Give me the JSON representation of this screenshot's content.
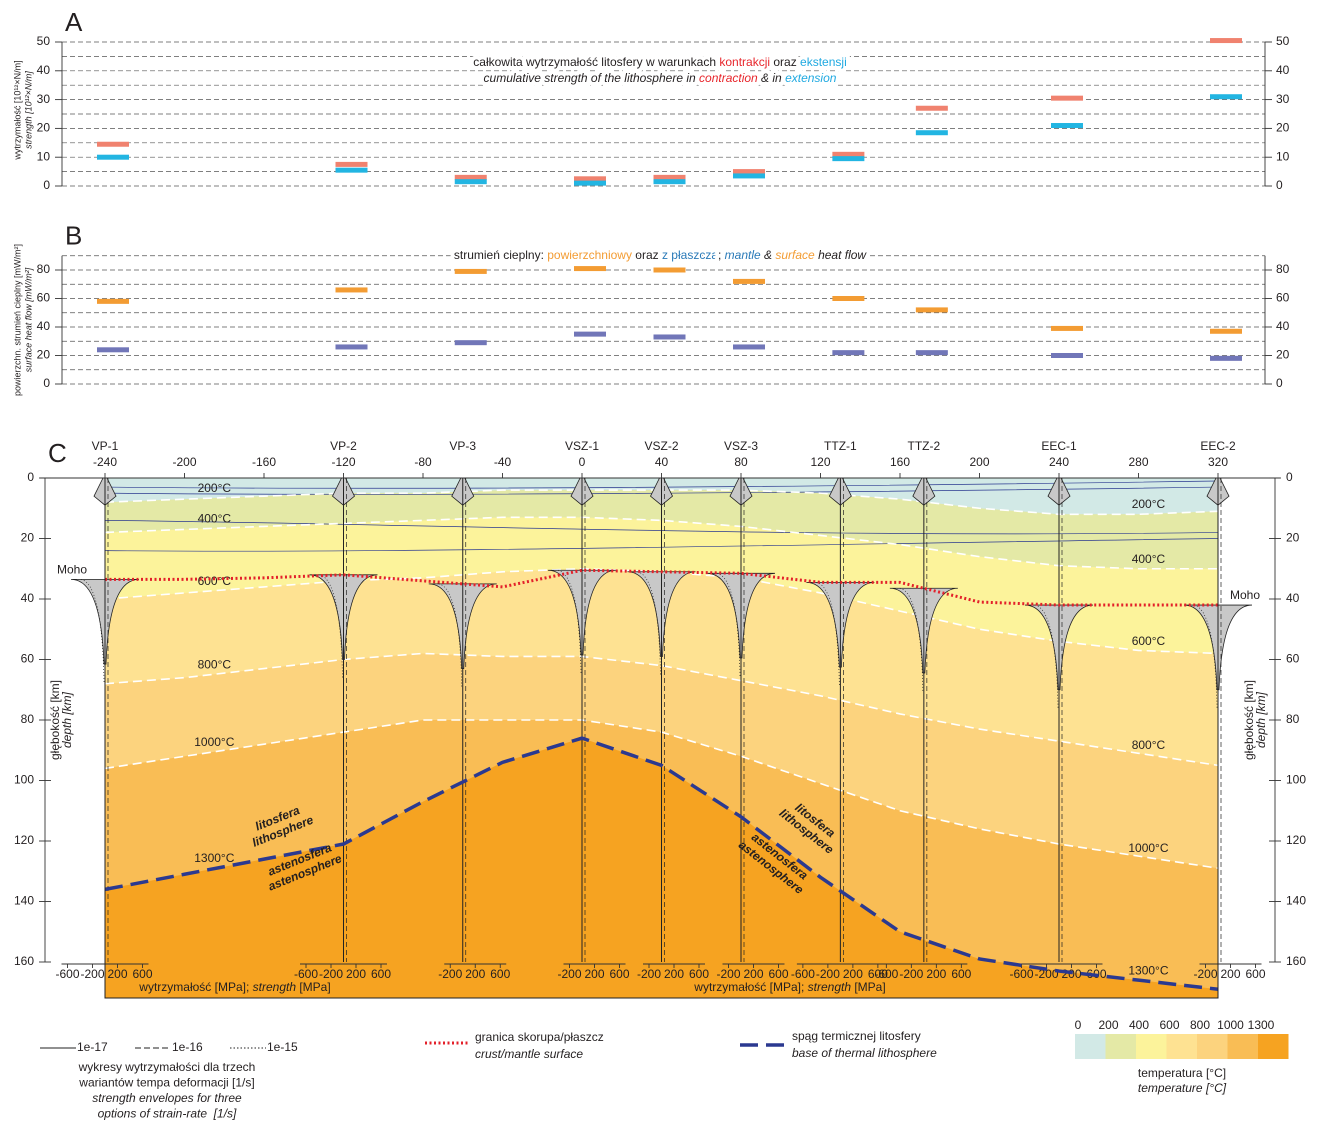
{
  "chart_data": [
    {
      "type": "marker",
      "panel_label": "A",
      "title_lines": [
        {
          "italic": false,
          "parts": [
            {
              "text": "całkowita wytrzymałość litosfery w warunkach "
            },
            {
              "text": "kontrakcji",
              "color": "#e8262c"
            },
            {
              "text": " oraz "
            },
            {
              "text": "ekstensji",
              "color": "#1fa9e1"
            }
          ]
        },
        {
          "italic": true,
          "parts": [
            {
              "text": "cumulative strength of the lithosphere in "
            },
            {
              "text": "contraction",
              "color": "#e8262c"
            },
            {
              "text": " & in "
            },
            {
              "text": "extension",
              "color": "#1fa9e1"
            }
          ]
        }
      ],
      "ylabel": [
        "wytrzymałość [10¹²×N/m]",
        "strength [10¹²×N/m]"
      ],
      "categories": [
        null,
        null,
        null,
        null,
        null,
        null,
        null,
        null,
        null,
        null
      ],
      "series": [
        {
          "color": "#f0826f",
          "values": [
            14.5,
            7.5,
            3,
            2.5,
            3,
            5,
            11,
            27,
            30.5,
            50.5
          ]
        },
        {
          "color": "#22b5e2",
          "values": [
            10,
            5.5,
            1.5,
            1,
            1.5,
            3.5,
            9.5,
            18.5,
            21,
            31
          ]
        }
      ],
      "ylim": [
        0,
        50
      ],
      "yticks": [
        0,
        10,
        20,
        30,
        40,
        50
      ],
      "minor_yticks": [
        5,
        15,
        25,
        35,
        45
      ],
      "grid": true
    },
    {
      "type": "marker",
      "panel_label": "B",
      "title_lines": [
        {
          "italic": false,
          "parts": [
            {
              "text": "strumień cieplny: "
            },
            {
              "text": "powierzchniowy",
              "color": "#f39c33"
            },
            {
              "text": " oraz "
            },
            {
              "text": "z płaszcza",
              "color": "#2a7ab8"
            },
            {
              "text": "; "
            },
            {
              "text": "mantle",
              "color": "#2a7ab8",
              "italic": true
            },
            {
              "text": " & ",
              "italic": true
            },
            {
              "text": "surface",
              "color": "#f39c33",
              "italic": true
            },
            {
              "text": " heat flow",
              "italic": true
            }
          ]
        }
      ],
      "ylabel": [
        "powierzchn. strumień cieplny [mW/m²]",
        "surface heat flow [mW/m²]"
      ],
      "categories": [
        null,
        null,
        null,
        null,
        null,
        null,
        null,
        null,
        null,
        null
      ],
      "series": [
        {
          "color": "#f39c33",
          "values": [
            58,
            66,
            79,
            81,
            80,
            72,
            60,
            52,
            39,
            37
          ]
        },
        {
          "color": "#7176b8",
          "values": [
            24,
            26,
            29,
            35,
            33,
            26,
            22,
            22,
            20,
            18
          ]
        }
      ],
      "ylim": [
        0,
        90
      ],
      "yticks": [
        0,
        20,
        40,
        60,
        80
      ],
      "minor_yticks": [
        10,
        30,
        50,
        70,
        90
      ],
      "grid": true
    },
    {
      "type": "cross-section",
      "panel_label": "C",
      "xlim": [
        -240,
        320
      ],
      "xticks": [
        -240,
        -200,
        -160,
        -120,
        -80,
        -40,
        0,
        40,
        80,
        120,
        160,
        200,
        240,
        280,
        320
      ],
      "ylim": [
        0,
        160
      ],
      "yticks": [
        0,
        20,
        40,
        60,
        80,
        100,
        120,
        140,
        160
      ],
      "ylabel": [
        "głębokość [km]",
        "depth [km]"
      ],
      "stations": [
        {
          "name": "VP-1",
          "x": -240,
          "strength_ticks": [
            -600,
            -200,
            200,
            600
          ]
        },
        {
          "name": "VP-2",
          "x": -120,
          "strength_ticks": [
            -600,
            -200,
            200,
            600
          ]
        },
        {
          "name": "VP-3",
          "x": -60,
          "strength_ticks": [
            -200,
            200,
            600
          ]
        },
        {
          "name": "VSZ-1",
          "x": 0,
          "strength_ticks": [
            -200,
            200,
            600
          ]
        },
        {
          "name": "VSZ-2",
          "x": 40,
          "strength_ticks": [
            -200,
            200,
            600
          ]
        },
        {
          "name": "VSZ-3",
          "x": 80,
          "strength_ticks": [
            -200,
            200,
            600
          ]
        },
        {
          "name": "TTZ-1",
          "x": 130,
          "strength_ticks": [
            -600,
            -200,
            200,
            600
          ]
        },
        {
          "name": "TTZ-2",
          "x": 172,
          "strength_ticks": [
            -600,
            -200,
            200,
            600
          ]
        },
        {
          "name": "EEC-1",
          "x": 240,
          "strength_ticks": [
            -600,
            -200,
            200,
            600
          ]
        },
        {
          "name": "EEC-2",
          "x": 320,
          "strength_ticks": [
            -200,
            200,
            600
          ]
        }
      ],
      "x": [
        -240,
        -200,
        -160,
        -120,
        -80,
        -40,
        0,
        40,
        80,
        120,
        160,
        200,
        240,
        280,
        320
      ],
      "isotherms": [
        {
          "label": "200°C",
          "values": [
            8,
            7,
            6,
            5,
            5,
            4,
            4,
            4,
            4,
            5,
            7,
            10,
            12,
            12,
            11
          ]
        },
        {
          "label": "400°C",
          "values": [
            18,
            17,
            16,
            15,
            14,
            13,
            13,
            14,
            16,
            19,
            22,
            26,
            29,
            30,
            30
          ]
        },
        {
          "label": "600°C",
          "values": [
            40,
            38,
            36,
            34,
            33,
            31,
            30,
            31,
            33,
            38,
            44,
            50,
            54,
            57,
            58
          ]
        },
        {
          "label": "800°C",
          "values": [
            68,
            66,
            63,
            60,
            58,
            59,
            59,
            62,
            67,
            72,
            78,
            83,
            87,
            91,
            95
          ]
        },
        {
          "label": "1000°C",
          "values": [
            96,
            92,
            88,
            84,
            80,
            80,
            80,
            84,
            92,
            101,
            110,
            116,
            121,
            125,
            129
          ]
        }
      ],
      "lithosphere_base": {
        "label": "1300°C",
        "color": "#2b3990",
        "values": [
          136,
          131,
          126,
          121,
          107,
          94,
          86,
          95,
          112,
          132,
          150,
          159,
          163,
          166,
          169
        ]
      },
      "moho": {
        "label": "Moho",
        "color": "#e3202a",
        "values": [
          33.5,
          33.5,
          33,
          32,
          34,
          36,
          30.5,
          31,
          31.5,
          34.5,
          34.5,
          41,
          42,
          42,
          42
        ]
      },
      "layer_labels": {
        "lithosphere": [
          "litosfera",
          "lithosphere"
        ],
        "asthenosphere": [
          "astenosfera",
          "astenosphere"
        ]
      },
      "strength_axis_label": [
        "wytrzymałość [MPa]; ",
        "strength",
        " [MPa]"
      ],
      "legend": {
        "strain_rates": [
          {
            "label": "1e-17",
            "style": "solid"
          },
          {
            "label": "1e-16",
            "style": "dashed"
          },
          {
            "label": "1e-15",
            "style": "dotted"
          }
        ],
        "strain_text": [
          "wykresy wytrzymałości dla trzech",
          "wariantów tempa deformacji [1/s]",
          "strength envelopes for three",
          "options of strain-rate  [1/s]"
        ],
        "moho": [
          "granica skorupa/płaszcz",
          "crust/mantle surface"
        ],
        "lithosphere": [
          "spąg termicznej litosfery",
          "base of thermal lithosphere"
        ],
        "temperature": {
          "ticks": [
            0,
            200,
            400,
            600,
            800,
            1000,
            1300
          ],
          "colors": [
            "#d2e9e6",
            "#e4e9a6",
            "#fcf39b",
            "#fee292",
            "#fcd37e",
            "#f9bd55",
            "#f6a321"
          ],
          "label": [
            "temperatura [°C]",
            "temperature [°C]"
          ]
        }
      }
    }
  ]
}
